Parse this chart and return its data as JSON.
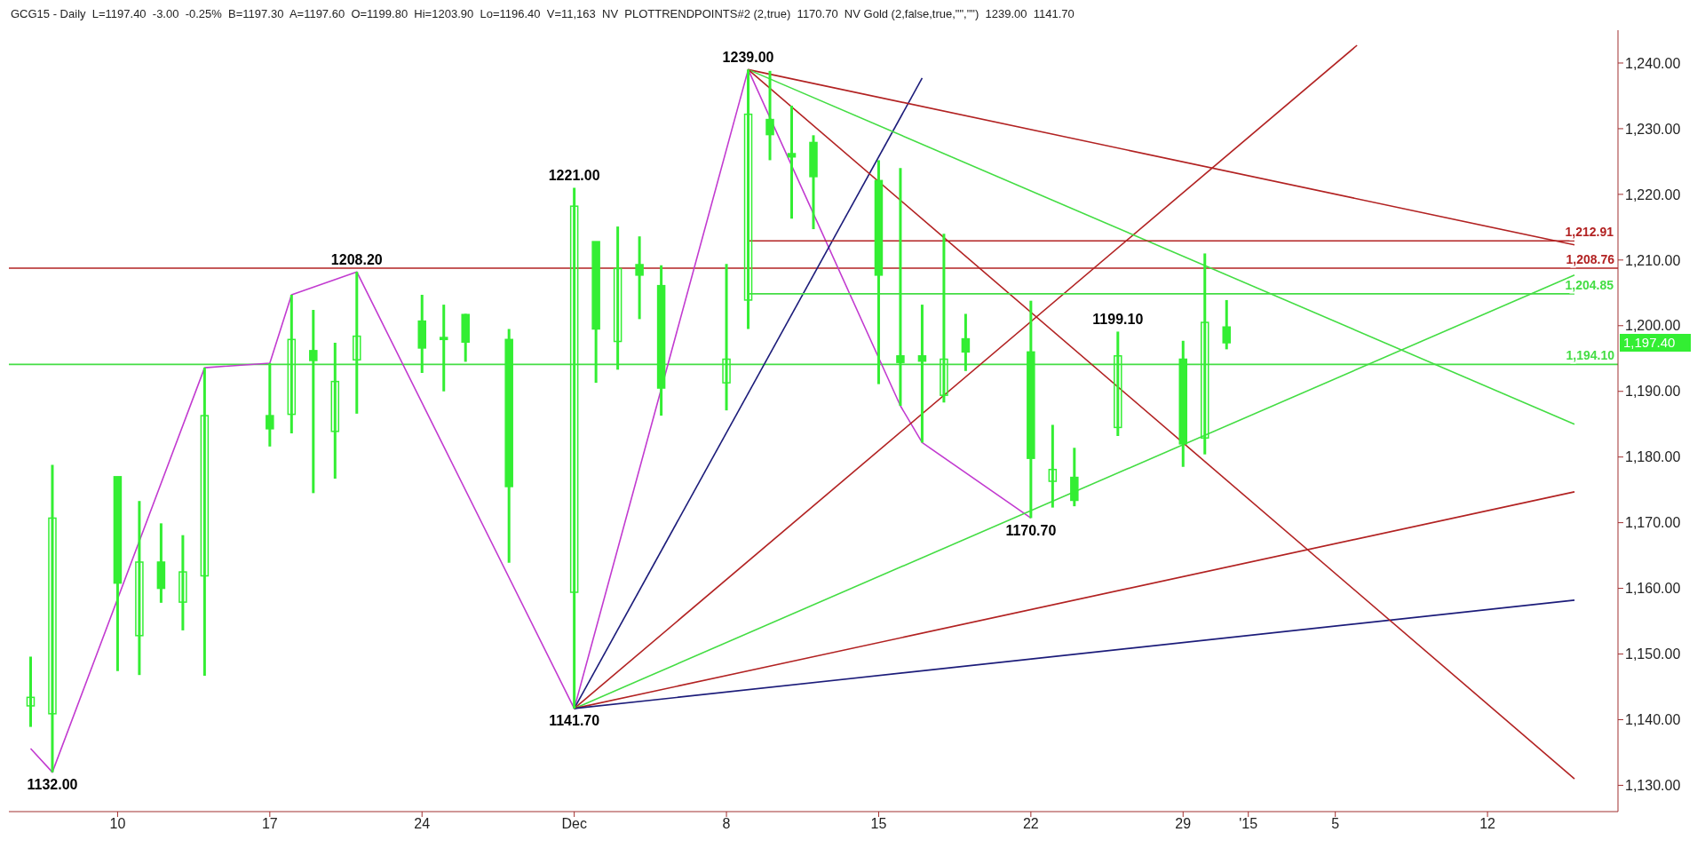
{
  "chart_data": {
    "type": "candlestick",
    "annotations": [
      "GCG15 - Daily  L=1197.40  -3.00  -0.25%  B=1197.30  A=1197.60  O=1199.80  Hi=1203.90  Lo=1196.40  V=11,163  NV  PLOTTRENDPOINTS#2 (2,true)  1170.70  NV Gold (2,false,true,\"\",\"\")  1239.00  1141.70",
      {
        "text": "1132.00",
        "x": "2014-11-07",
        "y": 1132.0
      },
      {
        "text": "1208.20",
        "x": "2014-11-21",
        "y": 1208.2
      },
      {
        "text": "1221.00",
        "x": "2014-12-01",
        "y": 1221.0
      },
      {
        "text": "1141.70",
        "x": "2014-12-01",
        "y": 1141.7
      },
      {
        "text": "1239.00",
        "x": "2014-12-09",
        "y": 1239.0
      },
      {
        "text": "1170.70",
        "x": "2014-12-22",
        "y": 1170.7
      },
      {
        "text": "1199.10",
        "x": "2014-12-26",
        "y": 1199.1
      },
      "1,197.40"
    ],
    "x": [
      "2014-11-06",
      "2014-11-07",
      "2014-11-10",
      "2014-11-11",
      "2014-11-12",
      "2014-11-13",
      "2014-11-14",
      "2014-11-17",
      "2014-11-18",
      "2014-11-19",
      "2014-11-20",
      "2014-11-21",
      "2014-11-24",
      "2014-11-25",
      "2014-11-26",
      "2014-11-28",
      "2014-12-01",
      "2014-12-02",
      "2014-12-03",
      "2014-12-04",
      "2014-12-05",
      "2014-12-08",
      "2014-12-09",
      "2014-12-10",
      "2014-12-11",
      "2014-12-12",
      "2014-12-15",
      "2014-12-16",
      "2014-12-17",
      "2014-12-18",
      "2014-12-19",
      "2014-12-22",
      "2014-12-23",
      "2014-12-24",
      "2014-12-26",
      "2014-12-29",
      "2014-12-30",
      "2014-12-31"
    ],
    "color": "#33ee33",
    "ohlc": [
      [
        1142.1,
        1149.6,
        1138.9,
        1143.4
      ],
      [
        1140.9,
        1178.8,
        1132.0,
        1170.7
      ],
      [
        1177.0,
        1177.0,
        1147.4,
        1160.8
      ],
      [
        1152.8,
        1173.3,
        1146.8,
        1164.0
      ],
      [
        1164.0,
        1169.9,
        1157.8,
        1160.0
      ],
      [
        1157.9,
        1168.1,
        1153.6,
        1162.5
      ],
      [
        1161.9,
        1193.6,
        1146.7,
        1186.3
      ],
      [
        1186.3,
        1194.3,
        1181.6,
        1184.3
      ],
      [
        1186.5,
        1204.7,
        1183.6,
        1197.9
      ],
      [
        1196.2,
        1202.4,
        1174.5,
        1194.7
      ],
      [
        1183.9,
        1197.4,
        1176.7,
        1191.5
      ],
      [
        1194.8,
        1208.2,
        1186.6,
        1198.4
      ],
      [
        1200.7,
        1204.7,
        1192.8,
        1196.6
      ],
      [
        1198.2,
        1203.2,
        1190.0,
        1197.9
      ],
      [
        1201.7,
        1201.8,
        1194.5,
        1197.5
      ],
      [
        1197.9,
        1199.5,
        1163.9,
        1175.5
      ],
      [
        1159.4,
        1221.0,
        1141.7,
        1218.2
      ],
      [
        1212.8,
        1212.8,
        1191.3,
        1199.5
      ],
      [
        1197.6,
        1215.1,
        1193.3,
        1208.7
      ],
      [
        1209.3,
        1213.6,
        1201.0,
        1207.7
      ],
      [
        1206.1,
        1209.2,
        1186.3,
        1190.5
      ],
      [
        1191.3,
        1209.4,
        1187.1,
        1194.9
      ],
      [
        1203.9,
        1239.0,
        1199.5,
        1232.2
      ],
      [
        1231.4,
        1238.8,
        1225.2,
        1229.1
      ],
      [
        1226.2,
        1233.5,
        1216.3,
        1225.7
      ],
      [
        1227.9,
        1229.0,
        1214.7,
        1222.7
      ],
      [
        1222.1,
        1225.2,
        1191.1,
        1207.7
      ],
      [
        1195.4,
        1224.0,
        1187.8,
        1194.4
      ],
      [
        1195.4,
        1203.2,
        1182.2,
        1194.6
      ],
      [
        1189.4,
        1214.0,
        1188.3,
        1194.9
      ],
      [
        1198.0,
        1201.8,
        1193.1,
        1196.0
      ],
      [
        1196.0,
        1203.8,
        1170.7,
        1179.8
      ],
      [
        1176.3,
        1184.9,
        1172.3,
        1178.1
      ],
      [
        1176.9,
        1181.4,
        1172.5,
        1173.4
      ],
      [
        1184.5,
        1199.1,
        1183.2,
        1195.4
      ],
      [
        1194.9,
        1197.7,
        1178.5,
        1182.0
      ],
      [
        1182.9,
        1211.0,
        1180.4,
        1200.5
      ],
      [
        1199.8,
        1203.9,
        1196.4,
        1197.4
      ]
    ],
    "series": [
      {
        "type": "line",
        "color": "#c23bd0",
        "x": [
          "2014-11-06",
          "2014-11-07",
          "2014-11-14",
          "2014-11-17",
          "2014-11-18",
          "2014-11-21",
          "2014-12-01",
          "2014-12-09",
          "2014-12-16",
          "2014-12-17",
          "2014-12-22"
        ],
        "values": [
          1135.6,
          1132.0,
          1193.6,
          1194.3,
          1204.7,
          1208.2,
          1141.7,
          1239.0,
          1187.8,
          1182.2,
          1170.7
        ]
      },
      {
        "type": "line",
        "color": "#1c1c7a",
        "x": [
          "2014-12-01",
          "2014-12-17"
        ],
        "values": [
          1141.7,
          1237.7
        ]
      },
      {
        "type": "line",
        "color": "#b22222",
        "x": [
          "2014-12-01",
          "2015-01-06"
        ],
        "values": [
          1141.7,
          1242.7
        ]
      },
      {
        "type": "line",
        "color": "#44dd44",
        "x": [
          "2014-12-01",
          "2015-01-16"
        ],
        "values": [
          1141.7,
          1207.7
        ]
      },
      {
        "type": "line",
        "color": "#b22222",
        "x": [
          "2014-12-01",
          "2015-01-16"
        ],
        "values": [
          1141.7,
          1174.7
        ]
      },
      {
        "type": "line",
        "color": "#1c1c7a",
        "x": [
          "2014-12-01",
          "2015-01-16"
        ],
        "values": [
          1141.7,
          1158.2
        ]
      },
      {
        "type": "line",
        "color": "#b22222",
        "x": [
          "2014-12-09",
          "2015-01-16"
        ],
        "values": [
          1239.0,
          1212.3
        ]
      },
      {
        "type": "line",
        "color": "#44dd44",
        "x": [
          "2014-12-09",
          "2015-01-16"
        ],
        "values": [
          1239.0,
          1185.0
        ]
      },
      {
        "type": "line",
        "color": "#b22222",
        "x": [
          "2014-12-09",
          "2015-01-16"
        ],
        "values": [
          1239.0,
          1131.0
        ]
      },
      {
        "type": "line",
        "name": "1,212.91",
        "color": "#b22222",
        "x": [
          "2014-12-09",
          "2015-01-16"
        ],
        "values": [
          1212.91,
          1212.91
        ]
      },
      {
        "type": "line",
        "name": "1,204.85",
        "color": "#44dd44",
        "x": [
          "2014-12-09",
          "2015-01-16"
        ],
        "values": [
          1204.85,
          1204.85
        ]
      }
    ],
    "ref_lines": [
      {
        "axis": "y",
        "value": 1208.76,
        "label": "1,208.76",
        "color": "#b22222"
      },
      {
        "axis": "y",
        "value": 1194.1,
        "label": "1,194.10",
        "color": "#44dd44"
      }
    ],
    "xlim": [
      "2014-11-05",
      "2015-01-18"
    ],
    "xticks": [
      {
        "value": "2014-11-10",
        "label": "10"
      },
      {
        "value": "2014-11-17",
        "label": "17"
      },
      {
        "value": "2014-11-24",
        "label": "24"
      },
      {
        "value": "2014-12-01",
        "label": "Dec"
      },
      {
        "value": "2014-12-08",
        "label": "8"
      },
      {
        "value": "2014-12-15",
        "label": "15"
      },
      {
        "value": "2014-12-22",
        "label": "22"
      },
      {
        "value": "2014-12-29",
        "label": "29"
      },
      {
        "value": "2015-01-01",
        "label": "'15"
      },
      {
        "value": "2015-01-05",
        "label": "5"
      },
      {
        "value": "2015-01-12",
        "label": "12"
      }
    ],
    "ylim": [
      1126,
      1245
    ],
    "yticks": [
      {
        "value": 1130,
        "label": "1,130.00"
      },
      {
        "value": 1140,
        "label": "1,140.00"
      },
      {
        "value": 1150,
        "label": "1,150.00"
      },
      {
        "value": 1160,
        "label": "1,160.00"
      },
      {
        "value": 1170,
        "label": "1,170.00"
      },
      {
        "value": 1180,
        "label": "1,180.00"
      },
      {
        "value": 1190,
        "label": "1,190.00"
      },
      {
        "value": 1200,
        "label": "1,200.00"
      },
      {
        "value": 1210,
        "label": "1,210.00"
      },
      {
        "value": 1220,
        "label": "1,220.00"
      },
      {
        "value": 1230,
        "label": "1,230.00"
      },
      {
        "value": 1240,
        "label": "1,240.00"
      }
    ],
    "grid": false,
    "legend": false,
    "marker": "none",
    "line_style": "solid"
  }
}
